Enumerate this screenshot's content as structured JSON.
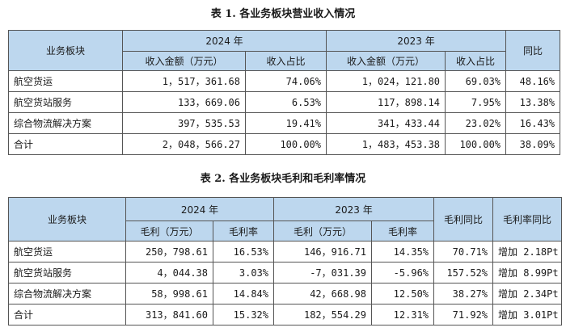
{
  "table1": {
    "caption": "表 1. 各业务板块营业收入情况",
    "header": {
      "segment": "业务板块",
      "year_2024": "2024 年",
      "year_2023": "2023 年",
      "yoy": "同比",
      "sub": [
        "收入金额（万元）",
        "收入占比",
        "收入金额（万元）",
        "收入占比"
      ]
    },
    "rows": [
      [
        "航空货运",
        "1，517，361.68",
        "74.06%",
        "1，024，121.80",
        "69.03%",
        "48.16%"
      ],
      [
        "航空货站服务",
        "133，669.06",
        "6.53%",
        "117，898.14",
        "7.95%",
        "13.38%"
      ],
      [
        "综合物流解决方案",
        "397，535.53",
        "19.41%",
        "341，433.44",
        "23.02%",
        "16.43%"
      ],
      [
        "合计",
        "2，048，566.27",
        "100.00%",
        "1，483，453.38",
        "100.00%",
        "38.09%"
      ]
    ]
  },
  "table2": {
    "caption": "表 2. 各业务板块毛利和毛利率情况",
    "header": {
      "segment": "业务板块",
      "year_2024": "2024 年",
      "year_2023": "2023 年",
      "gp_yoy": "毛利同比",
      "gm_change": "毛利率同比",
      "sub": [
        "毛利（万元）",
        "毛利率",
        "毛利（万元）",
        "毛利率"
      ]
    },
    "rows": [
      [
        "航空货运",
        "250，798.61",
        "16.53%",
        "146，916.71",
        "14.35%",
        "70.71%",
        "增加 2.18Pt"
      ],
      [
        "航空货站服务",
        "4，044.38",
        "3.03%",
        "-7，031.39",
        "-5.96%",
        "157.52%",
        "增加 8.99Pt"
      ],
      [
        "综合物流解决方案",
        "58，998.61",
        "14.84%",
        "42，668.98",
        "12.50%",
        "38.27%",
        "增加 2.34Pt"
      ],
      [
        "合计",
        "313，841.60",
        "15.32%",
        "182，554.29",
        "12.31%",
        "71.92%",
        "增加 3.01Pt"
      ]
    ]
  }
}
